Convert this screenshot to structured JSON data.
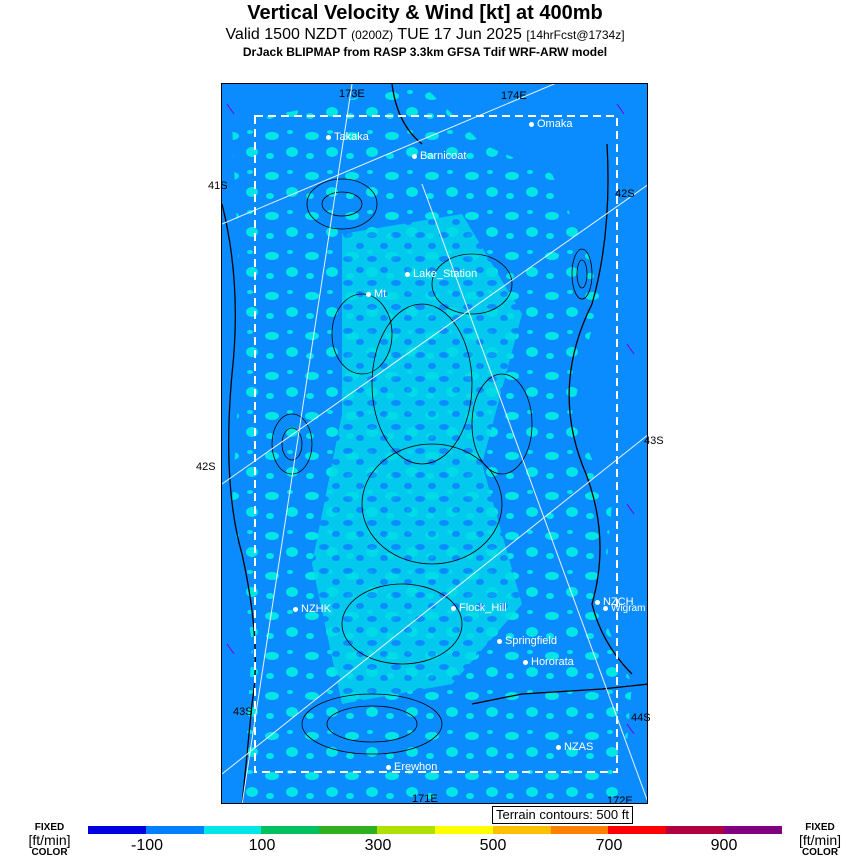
{
  "header": {
    "title": "Vertical Velocity & Wind [kt] at 400mb",
    "valid_main": "Valid 1500 NZDT",
    "valid_utc": "(0200Z)",
    "valid_date": "TUE 17 Jun 2025",
    "forecast_tag": "[14hrFcst@1734z]",
    "model_line": "DrJack BLIPMAP from RASP 3.3km GFSA Tdif WRF-ARW model"
  },
  "map": {
    "lon_labels": [
      "173E",
      "174E",
      "171E",
      "172E"
    ],
    "lat_labels": [
      "41S",
      "42S",
      "42S",
      "43S",
      "43S",
      "44S"
    ],
    "places": [
      "Takaka",
      "Omaka",
      "Barnicoat",
      "Lake_Station",
      "Mt",
      "NZHK",
      "Flock_Hill",
      "NZCH",
      "Wigram",
      "Springfield",
      "Hororata",
      "NZAS",
      "Erewhon"
    ]
  },
  "terrain_note": "Terrain contours: 500 ft",
  "colorbar": {
    "side_top": "FIXED",
    "side_unit": "[ft/min]",
    "side_bottom": "COLOR",
    "ticks": [
      "-100",
      "100",
      "300",
      "500",
      "700",
      "900"
    ],
    "colors": [
      "#0000e0",
      "#0080ff",
      "#00e6e6",
      "#00c060",
      "#30b020",
      "#b0e000",
      "#ffff00",
      "#ffc000",
      "#ff8000",
      "#ff0000",
      "#b00040",
      "#800080"
    ]
  }
}
